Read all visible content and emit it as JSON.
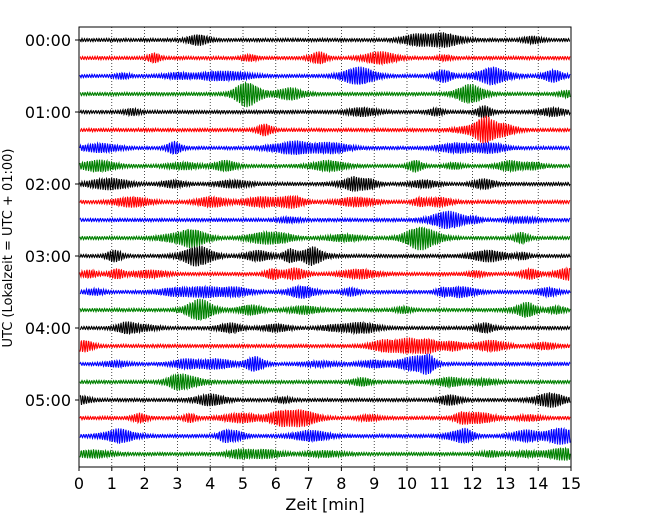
{
  "chart_data": {
    "type": "line",
    "chart_kind": "helicorder (seismogram drum plot)",
    "xlabel": "Zeit  [min]",
    "ylabel": "UTC (Lokalzeit = UTC + 01:00)",
    "xlim": [
      0,
      15
    ],
    "x_ticks": [
      "0",
      "1",
      "2",
      "3",
      "4",
      "5",
      "6",
      "7",
      "8",
      "9",
      "10",
      "11",
      "12",
      "13",
      "14",
      "15"
    ],
    "y_tick_labels": [
      "00:00",
      "01:00",
      "02:00",
      "03:00",
      "04:00",
      "05:00"
    ],
    "grid": "vertical dotted lines at each minute",
    "trace_colors": [
      "#000000",
      "#ff0000",
      "#0000ff",
      "#008000"
    ],
    "trace_count": 24,
    "minutes_per_trace": 15
  }
}
